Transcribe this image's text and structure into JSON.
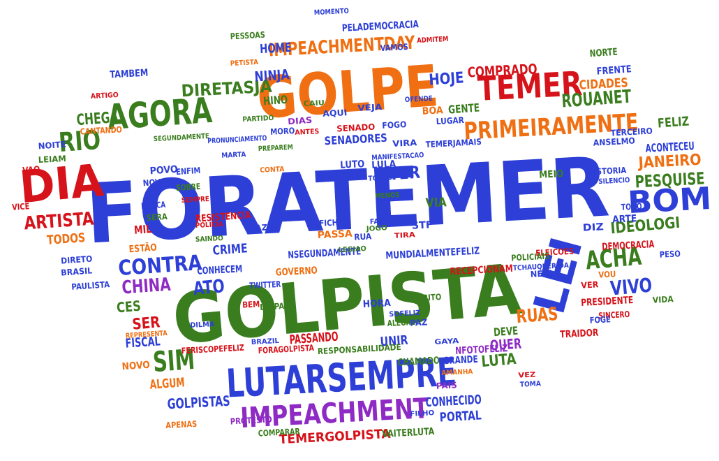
{
  "image": {
    "background": "#ffffff",
    "palette": {
      "blue": "#2d3fd6",
      "green": "#3a7d1e",
      "red": "#d6121a",
      "orange": "#ef6f12",
      "purple": "#8e2bc4"
    },
    "words": [
      {
        "text": "FORATEMER",
        "color": "blue"
      },
      {
        "text": "GOLPISTA",
        "color": "green"
      },
      {
        "text": "GOLPE",
        "color": "orange"
      },
      {
        "text": "LUTARSEMPRE",
        "color": "blue"
      },
      {
        "text": "DIA",
        "color": "red"
      },
      {
        "text": "AGORA",
        "color": "green"
      },
      {
        "text": "TEMER",
        "color": "red"
      },
      {
        "text": "PRIMEIRAMENTE",
        "color": "orange"
      },
      {
        "text": "IMPEACHMENT",
        "color": "purple"
      },
      {
        "text": "LEI",
        "color": "blue"
      },
      {
        "text": "BOM",
        "color": "blue"
      },
      {
        "text": "RIO",
        "color": "green"
      },
      {
        "text": "CONTRA",
        "color": "blue"
      },
      {
        "text": "SIM",
        "color": "green"
      },
      {
        "text": "ACHA",
        "color": "green"
      },
      {
        "text": "IMPEACHMENTDAY",
        "color": "orange"
      },
      {
        "text": "ROUANET",
        "color": "green"
      },
      {
        "text": "ARTISTA",
        "color": "red"
      },
      {
        "text": "DIRETASJA",
        "color": "green"
      },
      {
        "text": "VIVO",
        "color": "blue"
      },
      {
        "text": "CHINA",
        "color": "purple"
      },
      {
        "text": "RUAS",
        "color": "orange"
      },
      {
        "text": "COMPRADO",
        "color": "red"
      },
      {
        "text": "PESQUISE",
        "color": "green"
      },
      {
        "text": "IDEOLOGI",
        "color": "green"
      },
      {
        "text": "JANEIRO",
        "color": "orange"
      },
      {
        "text": "HOJE",
        "color": "blue"
      },
      {
        "text": "CHEGA",
        "color": "green"
      },
      {
        "text": "NINJA",
        "color": "blue"
      },
      {
        "text": "ATO",
        "color": "blue"
      },
      {
        "text": "GOLPISTAS",
        "color": "blue"
      },
      {
        "text": "TEMERGOLPISTA",
        "color": "red"
      },
      {
        "text": "CONHECIDO",
        "color": "blue"
      },
      {
        "text": "PORTAL",
        "color": "blue"
      },
      {
        "text": "LUTA",
        "color": "green"
      },
      {
        "text": "QUER",
        "color": "purple"
      },
      {
        "text": "SER",
        "color": "red"
      },
      {
        "text": "CES",
        "color": "green"
      },
      {
        "text": "FISCAL",
        "color": "blue"
      },
      {
        "text": "ALGUM",
        "color": "orange"
      },
      {
        "text": "TODOS",
        "color": "orange"
      },
      {
        "text": "TER",
        "color": "blue"
      },
      {
        "text": "CRIME",
        "color": "blue"
      },
      {
        "text": "HOME",
        "color": "blue"
      },
      {
        "text": "UNIR",
        "color": "blue"
      },
      {
        "text": "CIDADES",
        "color": "orange"
      },
      {
        "text": "PELADEMOCRACIA",
        "color": "blue"
      },
      {
        "text": "FRENTE",
        "color": "blue"
      },
      {
        "text": "HINO",
        "color": "green"
      },
      {
        "text": "TAMBEM",
        "color": "blue"
      },
      {
        "text": "FELIZ",
        "color": "green"
      },
      {
        "text": "GENTE",
        "color": "green"
      },
      {
        "text": "SENADORES",
        "color": "blue"
      },
      {
        "text": "PASSANDO",
        "color": "red"
      },
      {
        "text": "VIA",
        "color": "green"
      },
      {
        "text": "DEVE",
        "color": "green"
      },
      {
        "text": "CHAMADO",
        "color": "green"
      },
      {
        "text": "GRANDE",
        "color": "blue"
      },
      {
        "text": "ACONTECEU",
        "color": "blue"
      },
      {
        "text": "DEMOCRACIA",
        "color": "red"
      },
      {
        "text": "PRESIDENTE",
        "color": "red"
      },
      {
        "text": "PASSA",
        "color": "orange"
      },
      {
        "text": "RESISTENCIA",
        "color": "red"
      },
      {
        "text": "STF",
        "color": "blue"
      },
      {
        "text": "ARTE",
        "color": "blue"
      },
      {
        "text": "POA",
        "color": "blue"
      },
      {
        "text": "DIZ",
        "color": "blue"
      },
      {
        "text": "POVO",
        "color": "blue"
      },
      {
        "text": "NOVO",
        "color": "orange"
      },
      {
        "text": "APENAS",
        "color": "orange"
      },
      {
        "text": "COMPARAR",
        "color": "green"
      },
      {
        "text": "PROTESTO",
        "color": "purple"
      },
      {
        "text": "RESPONSABILIDADE",
        "color": "green"
      },
      {
        "text": "FORAGOLPISTA",
        "color": "red"
      },
      {
        "text": "FERISCOPEFELIZ",
        "color": "red"
      },
      {
        "text": "VAITERLUTA",
        "color": "green"
      },
      {
        "text": "NFOTOFELIZ",
        "color": "purple"
      },
      {
        "text": "MUNDIALMENTEFELIZ",
        "color": "blue"
      },
      {
        "text": "NSEGUNDAMENTE",
        "color": "blue"
      },
      {
        "text": "RECEPCIONAM",
        "color": "red"
      },
      {
        "text": "TRAIDOR",
        "color": "red"
      },
      {
        "text": "GOVERNO",
        "color": "orange"
      },
      {
        "text": "CONHECEM",
        "color": "blue"
      },
      {
        "text": "BRASIL",
        "color": "blue"
      },
      {
        "text": "PAULISTA",
        "color": "blue"
      },
      {
        "text": "DIRETO",
        "color": "blue"
      },
      {
        "text": "MIL",
        "color": "red"
      },
      {
        "text": "ESTÃO",
        "color": "orange"
      },
      {
        "text": "NORTE",
        "color": "green"
      },
      {
        "text": "MEIO",
        "color": "green"
      },
      {
        "text": "VAMOS",
        "color": "blue"
      },
      {
        "text": "PESSOAS",
        "color": "green"
      },
      {
        "text": "BOA",
        "color": "orange"
      },
      {
        "text": "LULA",
        "color": "blue"
      },
      {
        "text": "LUTO",
        "color": "blue"
      },
      {
        "text": "AQUI",
        "color": "blue"
      },
      {
        "text": "FOGO",
        "color": "blue"
      },
      {
        "text": "LUGAR",
        "color": "blue"
      },
      {
        "text": "SENADO",
        "color": "red"
      },
      {
        "text": "VEJA",
        "color": "blue"
      },
      {
        "text": "DIAS",
        "color": "purple"
      },
      {
        "text": "MORO",
        "color": "blue"
      },
      {
        "text": "NOITE",
        "color": "blue"
      },
      {
        "text": "CANTANDO",
        "color": "orange"
      },
      {
        "text": "LEIAM",
        "color": "green"
      },
      {
        "text": "VIRA",
        "color": "blue"
      },
      {
        "text": "TEMERJAMAIS",
        "color": "blue"
      },
      {
        "text": "ANSELMO",
        "color": "blue"
      },
      {
        "text": "TERCEIRO",
        "color": "blue"
      },
      {
        "text": "HISTORIA",
        "color": "blue"
      },
      {
        "text": "ELEICOES",
        "color": "red"
      },
      {
        "text": "POLICIAIS",
        "color": "green"
      },
      {
        "text": "NEW",
        "color": "blue"
      },
      {
        "text": "SINCERO",
        "color": "red"
      },
      {
        "text": "VIDA",
        "color": "green"
      },
      {
        "text": "PESO",
        "color": "blue"
      },
      {
        "text": "VOU",
        "color": "orange"
      },
      {
        "text": "HORA",
        "color": "blue"
      },
      {
        "text": "GRITO",
        "color": "green"
      },
      {
        "text": "ALEGRE",
        "color": "green"
      },
      {
        "text": "LIMPA",
        "color": "green"
      },
      {
        "text": "BEM",
        "color": "red"
      },
      {
        "text": "PAZ",
        "color": "blue"
      },
      {
        "text": "FICHA",
        "color": "blue"
      },
      {
        "text": "VAZA",
        "color": "blue"
      },
      {
        "text": "TWITTER",
        "color": "blue"
      },
      {
        "text": "RUA",
        "color": "blue"
      },
      {
        "text": "SERA",
        "color": "green"
      },
      {
        "text": "NUNCA",
        "color": "blue"
      },
      {
        "text": "SOBRE",
        "color": "green"
      },
      {
        "text": "ENFIM",
        "color": "blue"
      },
      {
        "text": "NOVAS",
        "color": "blue"
      },
      {
        "text": "VAO",
        "color": "red"
      },
      {
        "text": "VICE",
        "color": "red"
      },
      {
        "text": "PAIS",
        "color": "purple"
      },
      {
        "text": "FOGE",
        "color": "blue"
      },
      {
        "text": "TODO",
        "color": "blue"
      },
      {
        "text": "VER",
        "color": "red"
      },
      {
        "text": "MANIFESTACAO",
        "color": "blue"
      },
      {
        "text": "TCHAU",
        "color": "blue"
      },
      {
        "text": "SILENCIO",
        "color": "blue"
      },
      {
        "text": "OFENDE",
        "color": "blue"
      },
      {
        "text": "ADMITEM",
        "color": "red"
      },
      {
        "text": "PETISTA",
        "color": "orange"
      },
      {
        "text": "MOMENTO",
        "color": "blue"
      },
      {
        "text": "SAINDO",
        "color": "green"
      },
      {
        "text": "SEMPRE",
        "color": "red"
      },
      {
        "text": "DILMA",
        "color": "blue"
      },
      {
        "text": "TCHAUQUERIDA",
        "color": "blue"
      },
      {
        "text": "FILHO",
        "color": "blue"
      },
      {
        "text": "TOMA",
        "color": "blue"
      },
      {
        "text": "VEZ",
        "color": "red"
      },
      {
        "text": "GAYA",
        "color": "blue"
      },
      {
        "text": "SOFELIZ",
        "color": "blue"
      },
      {
        "text": "MENOS",
        "color": "green"
      },
      {
        "text": "ARTIGO",
        "color": "red"
      },
      {
        "text": "TIRA",
        "color": "red"
      },
      {
        "text": "FACIL",
        "color": "blue"
      },
      {
        "text": "JOGO",
        "color": "green"
      },
      {
        "text": "LEGIAO",
        "color": "green"
      },
      {
        "text": "REPRESENTA",
        "color": "orange"
      },
      {
        "text": "POLICIA",
        "color": "red"
      },
      {
        "text": "SEGUNDAMENTE",
        "color": "green"
      },
      {
        "text": "PRONUNCIAMENTO",
        "color": "blue"
      },
      {
        "text": "PREPAREM",
        "color": "green"
      },
      {
        "text": "PARTIDO",
        "color": "green"
      },
      {
        "text": "CAIU",
        "color": "green"
      },
      {
        "text": "MARTA",
        "color": "blue"
      },
      {
        "text": "ANTES",
        "color": "red"
      },
      {
        "text": "CONTA",
        "color": "orange"
      },
      {
        "text": "BRAZIL",
        "color": "blue"
      },
      {
        "text": "AMANHA",
        "color": "orange"
      }
    ]
  }
}
